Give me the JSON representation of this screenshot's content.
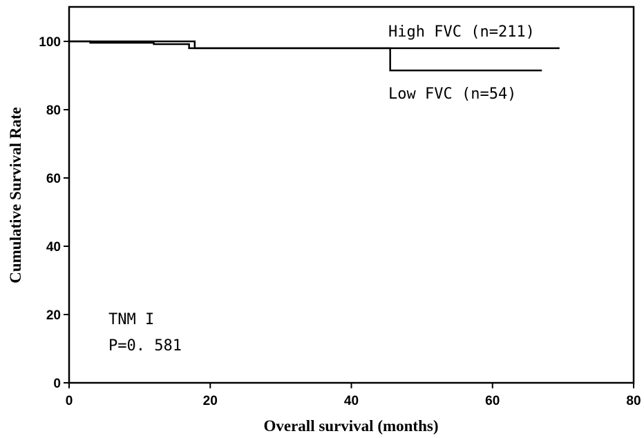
{
  "chart_data": {
    "type": "line",
    "xlabel": "Overall survival (months)",
    "ylabel": "Cumulative Survival Rate",
    "xlim": [
      0,
      80
    ],
    "ylim": [
      0,
      100
    ],
    "x_ticks": [
      "0",
      "20",
      "40",
      "60",
      "80"
    ],
    "y_ticks": [
      "0",
      "20",
      "40",
      "60",
      "80",
      "100"
    ],
    "grid": false,
    "series": [
      {
        "name": "High FVC (n=211)",
        "color": "#000000",
        "step_points": [
          [
            0,
            100
          ],
          [
            3,
            99.6
          ],
          [
            12,
            99.2
          ],
          [
            17,
            98
          ],
          [
            69.5,
            98
          ]
        ]
      },
      {
        "name": "Low FVC (n=54)",
        "color": "#000000",
        "step_points": [
          [
            0,
            100
          ],
          [
            17.8,
            100
          ],
          [
            17.8,
            98
          ],
          [
            45.5,
            98
          ],
          [
            45.5,
            91.5
          ],
          [
            67,
            91.5
          ]
        ]
      }
    ],
    "annotations": [
      "TNM I",
      "P=0. 581"
    ]
  }
}
